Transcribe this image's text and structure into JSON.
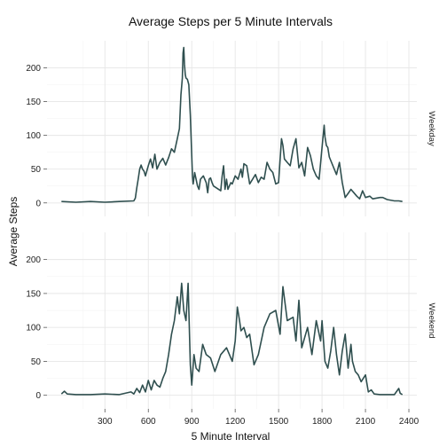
{
  "chart_data": {
    "type": "line",
    "title": "Average Steps per 5 Minute Intervals",
    "xlabel": "5 Minute Interval",
    "ylabel": "Average Steps",
    "xlim": [
      -100,
      2455
    ],
    "ylim": [
      -20,
      240
    ],
    "xticks": [
      300,
      600,
      900,
      1200,
      1500,
      1800,
      2100,
      2400
    ],
    "yticks": [
      0,
      50,
      100,
      150,
      200
    ],
    "grid": true,
    "line_color": "#2f4f4f",
    "panels": [
      {
        "strip": "Weekday",
        "x": [
          0,
          100,
          200,
          300,
          400,
          500,
          510,
          520,
          530,
          540,
          550,
          560,
          570,
          580,
          600,
          615,
          630,
          645,
          660,
          680,
          700,
          720,
          740,
          760,
          780,
          800,
          815,
          825,
          835,
          840,
          845,
          850,
          855,
          860,
          870,
          880,
          890,
          900,
          905,
          910,
          920,
          930,
          940,
          950,
          960,
          980,
          1000,
          1010,
          1020,
          1030,
          1040,
          1050,
          1100,
          1110,
          1120,
          1130,
          1140,
          1150,
          1160,
          1170,
          1180,
          1200,
          1220,
          1240,
          1250,
          1260,
          1280,
          1300,
          1320,
          1340,
          1360,
          1380,
          1400,
          1420,
          1440,
          1460,
          1480,
          1500,
          1520,
          1530,
          1540,
          1560,
          1580,
          1600,
          1620,
          1640,
          1660,
          1680,
          1700,
          1720,
          1740,
          1760,
          1780,
          1800,
          1815,
          1820,
          1830,
          1840,
          1850,
          1900,
          1920,
          1940,
          1960,
          1980,
          2000,
          2020,
          2040,
          2060,
          2080,
          2100,
          2130,
          2150,
          2200,
          2220,
          2250,
          2300,
          2330,
          2355
        ],
        "y": [
          2,
          1,
          2,
          1,
          2,
          3,
          7,
          22,
          35,
          50,
          56,
          50,
          47,
          40,
          55,
          65,
          52,
          72,
          50,
          60,
          66,
          56,
          67,
          80,
          75,
          95,
          110,
          160,
          185,
          222,
          230,
          205,
          190,
          185,
          183,
          175,
          130,
          70,
          40,
          28,
          45,
          35,
          25,
          20,
          35,
          40,
          30,
          15,
          35,
          37,
          30,
          25,
          18,
          40,
          55,
          20,
          35,
          20,
          25,
          30,
          28,
          40,
          35,
          50,
          38,
          58,
          55,
          28,
          35,
          42,
          30,
          38,
          35,
          60,
          50,
          45,
          28,
          30,
          95,
          85,
          65,
          60,
          55,
          80,
          95,
          52,
          60,
          40,
          82,
          70,
          50,
          40,
          35,
          82,
          115,
          98,
          85,
          82,
          68,
          42,
          60,
          30,
          8,
          14,
          20,
          15,
          10,
          6,
          18,
          8,
          10,
          6,
          8,
          8,
          5,
          3,
          3,
          2
        ]
      },
      {
        "strip": "Weekend",
        "x": [
          0,
          20,
          40,
          100,
          200,
          300,
          400,
          480,
          500,
          520,
          540,
          560,
          580,
          600,
          620,
          640,
          660,
          680,
          700,
          720,
          740,
          760,
          780,
          800,
          815,
          830,
          845,
          860,
          875,
          890,
          900,
          915,
          930,
          950,
          975,
          1000,
          1030,
          1060,
          1100,
          1140,
          1180,
          1200,
          1215,
          1230,
          1240,
          1260,
          1280,
          1300,
          1330,
          1360,
          1400,
          1440,
          1480,
          1510,
          1530,
          1560,
          1600,
          1620,
          1640,
          1660,
          1700,
          1730,
          1760,
          1790,
          1800,
          1820,
          1840,
          1860,
          1880,
          1900,
          1920,
          1940,
          1960,
          1980,
          2000,
          2010,
          2030,
          2050,
          2070,
          2100,
          2120,
          2140,
          2160,
          2200,
          2250,
          2300,
          2330,
          2340,
          2355
        ],
        "y": [
          2,
          6,
          2,
          1,
          1,
          2,
          1,
          5,
          2,
          10,
          4,
          15,
          5,
          22,
          8,
          22,
          15,
          12,
          25,
          35,
          60,
          90,
          110,
          145,
          120,
          165,
          125,
          110,
          165,
          45,
          15,
          60,
          40,
          35,
          75,
          60,
          55,
          35,
          60,
          70,
          50,
          80,
          130,
          110,
          95,
          100,
          85,
          90,
          45,
          60,
          100,
          120,
          125,
          90,
          160,
          110,
          115,
          80,
          140,
          70,
          100,
          60,
          110,
          80,
          110,
          50,
          40,
          65,
          100,
          60,
          30,
          65,
          90,
          40,
          75,
          50,
          35,
          30,
          20,
          30,
          5,
          8,
          2,
          1,
          1,
          1,
          10,
          3,
          1
        ]
      }
    ]
  }
}
